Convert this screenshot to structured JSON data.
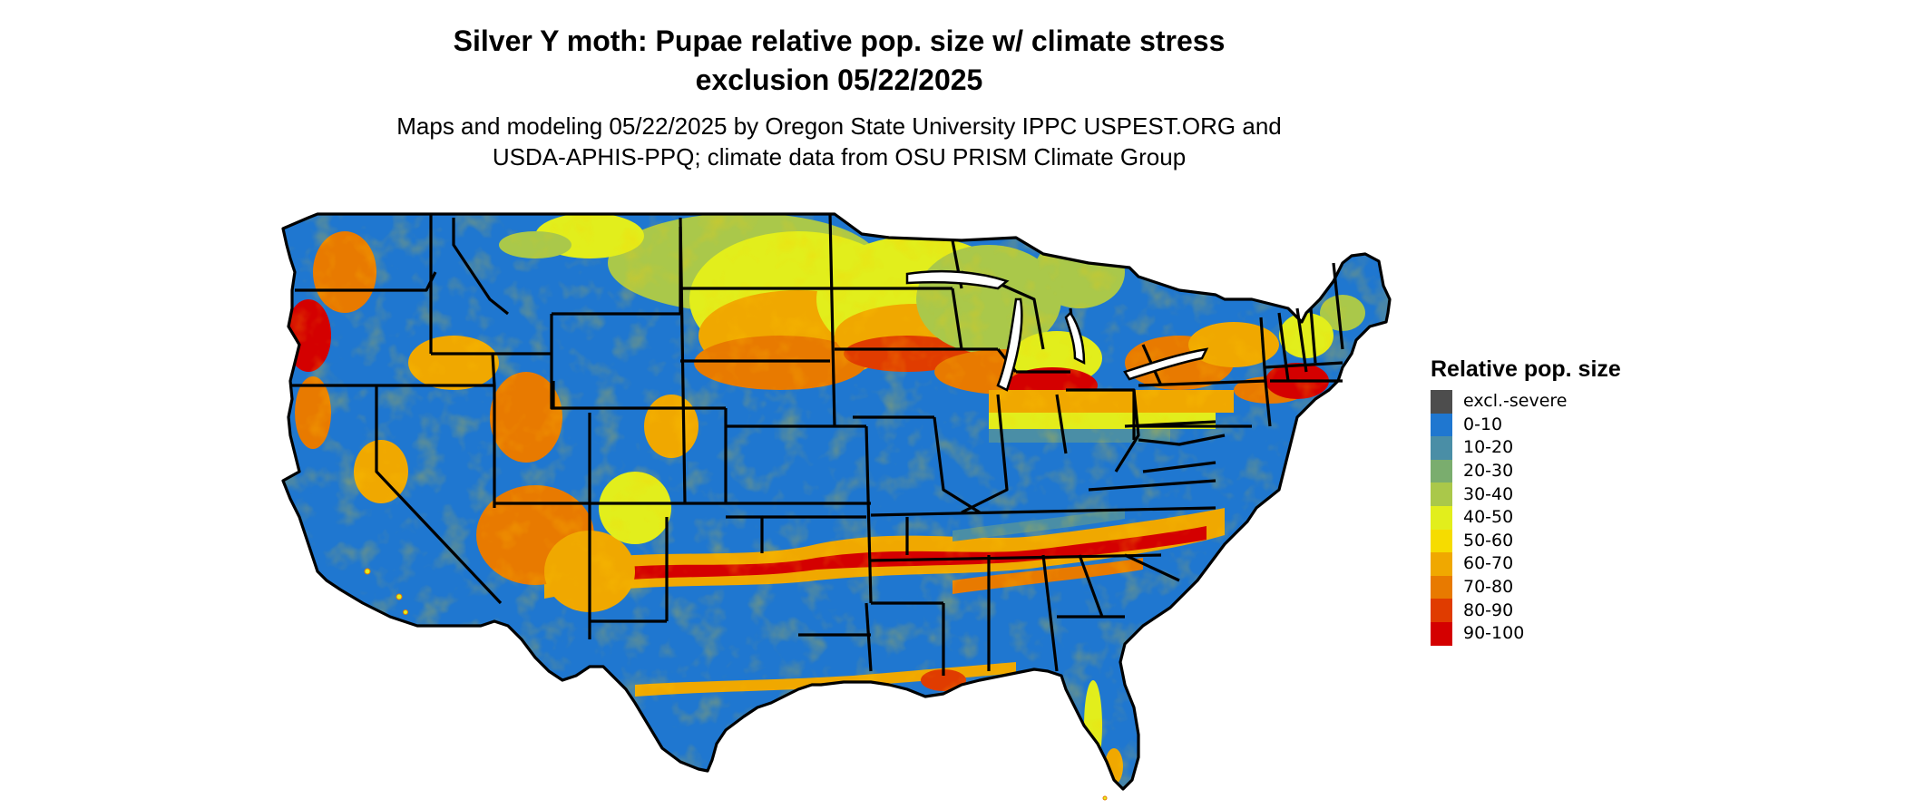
{
  "map": {
    "title_line1": "Silver Y moth: Pupae relative pop. size w/ climate stress",
    "title_line2": "exclusion 05/22/2025",
    "subtitle_line1": "Maps and modeling 05/22/2025 by Oregon State University IPPC USPEST.ORG and",
    "subtitle_line2": "USDA-APHIS-PPQ; climate data from OSU PRISM Climate Group",
    "region": "Contiguous United States",
    "boundary_color": "#000000"
  },
  "legend": {
    "title": "Relative pop. size",
    "items": [
      {
        "label": "excl.-severe",
        "color": "#4d4d4d"
      },
      {
        "label": "0-10",
        "color": "#1f77d0"
      },
      {
        "label": "10-20",
        "color": "#4a8ea6"
      },
      {
        "label": "20-30",
        "color": "#7aad6e"
      },
      {
        "label": "30-40",
        "color": "#aac84a"
      },
      {
        "label": "40-50",
        "color": "#e2ee1c"
      },
      {
        "label": "50-60",
        "color": "#f6dc00"
      },
      {
        "label": "60-70",
        "color": "#f0a800"
      },
      {
        "label": "70-80",
        "color": "#e87a00"
      },
      {
        "label": "80-90",
        "color": "#e03c00"
      },
      {
        "label": "90-100",
        "color": "#d40000"
      }
    ]
  }
}
